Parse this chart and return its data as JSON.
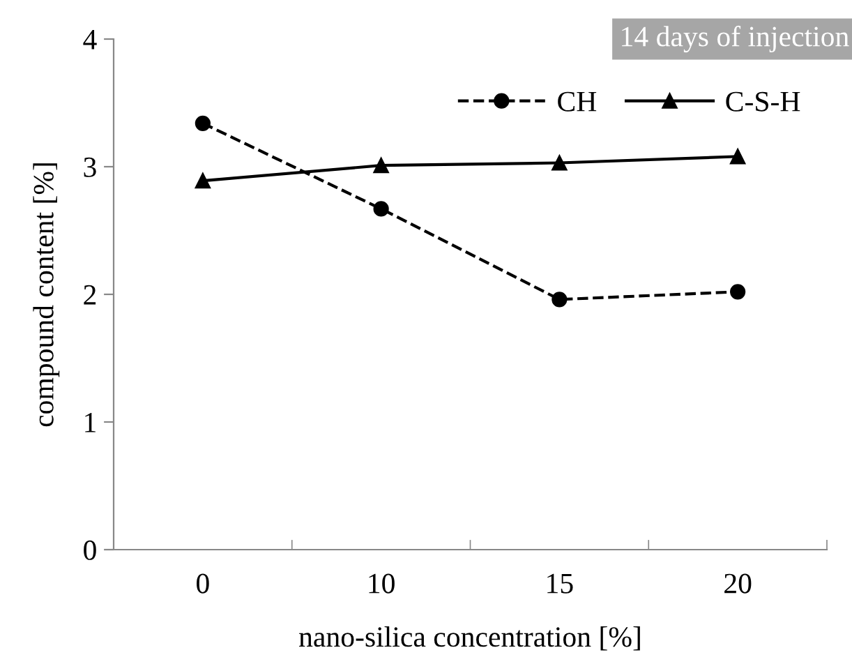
{
  "chart_data": {
    "type": "line",
    "title": "14 days of injection",
    "xlabel": "nano-silica concentration [%]",
    "ylabel": "compound content [%]",
    "categories": [
      "0",
      "10",
      "15",
      "20"
    ],
    "series": [
      {
        "name": "CH",
        "color": "#000000",
        "values": [
          3.34,
          2.67,
          1.96,
          2.02
        ],
        "line_style": "dashed",
        "marker": "circle"
      },
      {
        "name": "C-S-H",
        "color": "#000000",
        "values": [
          2.89,
          3.01,
          3.03,
          3.08
        ],
        "line_style": "solid",
        "marker": "triangle"
      }
    ],
    "ylim": [
      0,
      4
    ],
    "yticks": [
      0,
      1,
      2,
      3,
      4
    ],
    "grid": false,
    "legend": "top right"
  }
}
